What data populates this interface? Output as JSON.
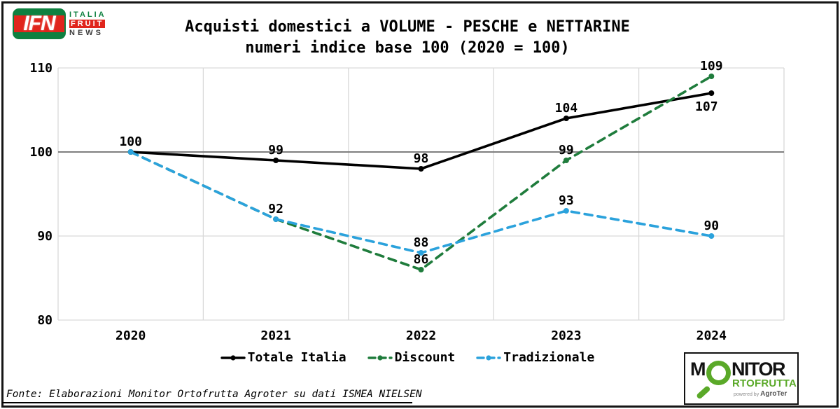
{
  "page": {
    "background": "#ffffff",
    "frame_color": "#151515"
  },
  "header": {
    "logo_ifn": {
      "initials": "IFN",
      "word1": "ITALIA",
      "word2": "FRUIT",
      "word3": "NEWS",
      "green": "#0e8040",
      "red": "#e0251c",
      "dark": "#3d3d3d"
    }
  },
  "chart_data": {
    "type": "line",
    "title": "Acquisti domestici a VOLUME - PESCHE e NETTARINE",
    "subtitle": "numeri indice base 100 (2020 = 100)",
    "categories": [
      "2020",
      "2021",
      "2022",
      "2023",
      "2024"
    ],
    "series": [
      {
        "name": "Totale Italia",
        "color": "#000000",
        "style": "solid",
        "values": [
          100,
          99,
          98,
          104,
          107
        ],
        "labels": [
          "100",
          "99",
          "98",
          "104",
          "107"
        ]
      },
      {
        "name": "Discount",
        "color": "#1f7c3c",
        "style": "dashed",
        "values": [
          100,
          92,
          86,
          99,
          109
        ],
        "labels": [
          null,
          "92",
          "86",
          "99",
          "109"
        ]
      },
      {
        "name": "Tradizionale",
        "color": "#2ba2dc",
        "style": "dashed",
        "values": [
          100,
          92,
          88,
          93,
          90
        ],
        "labels": [
          null,
          null,
          "88",
          "93",
          "90"
        ]
      }
    ],
    "ylim": [
      80,
      110
    ],
    "yticks": [
      80,
      90,
      100,
      110
    ],
    "baseline": 100,
    "grid": true,
    "legend_position": "bottom",
    "gridline_color": "#d9d9d9",
    "baseline_color": "#7f7f7f"
  },
  "footer": {
    "source_text": "Fonte: Elaborazioni Monitor Ortofrutta Agroter su dati ISMEA NIELSEN",
    "logo_monitor": {
      "word_m": "M",
      "word_nitor": "NITOR",
      "word_rtofrutta": "RTOFRUTTA",
      "powered_by": "powered by",
      "brand": "AgroTer",
      "green": "#5aa928",
      "black": "#121212",
      "gray": "#8a8a8a"
    }
  }
}
